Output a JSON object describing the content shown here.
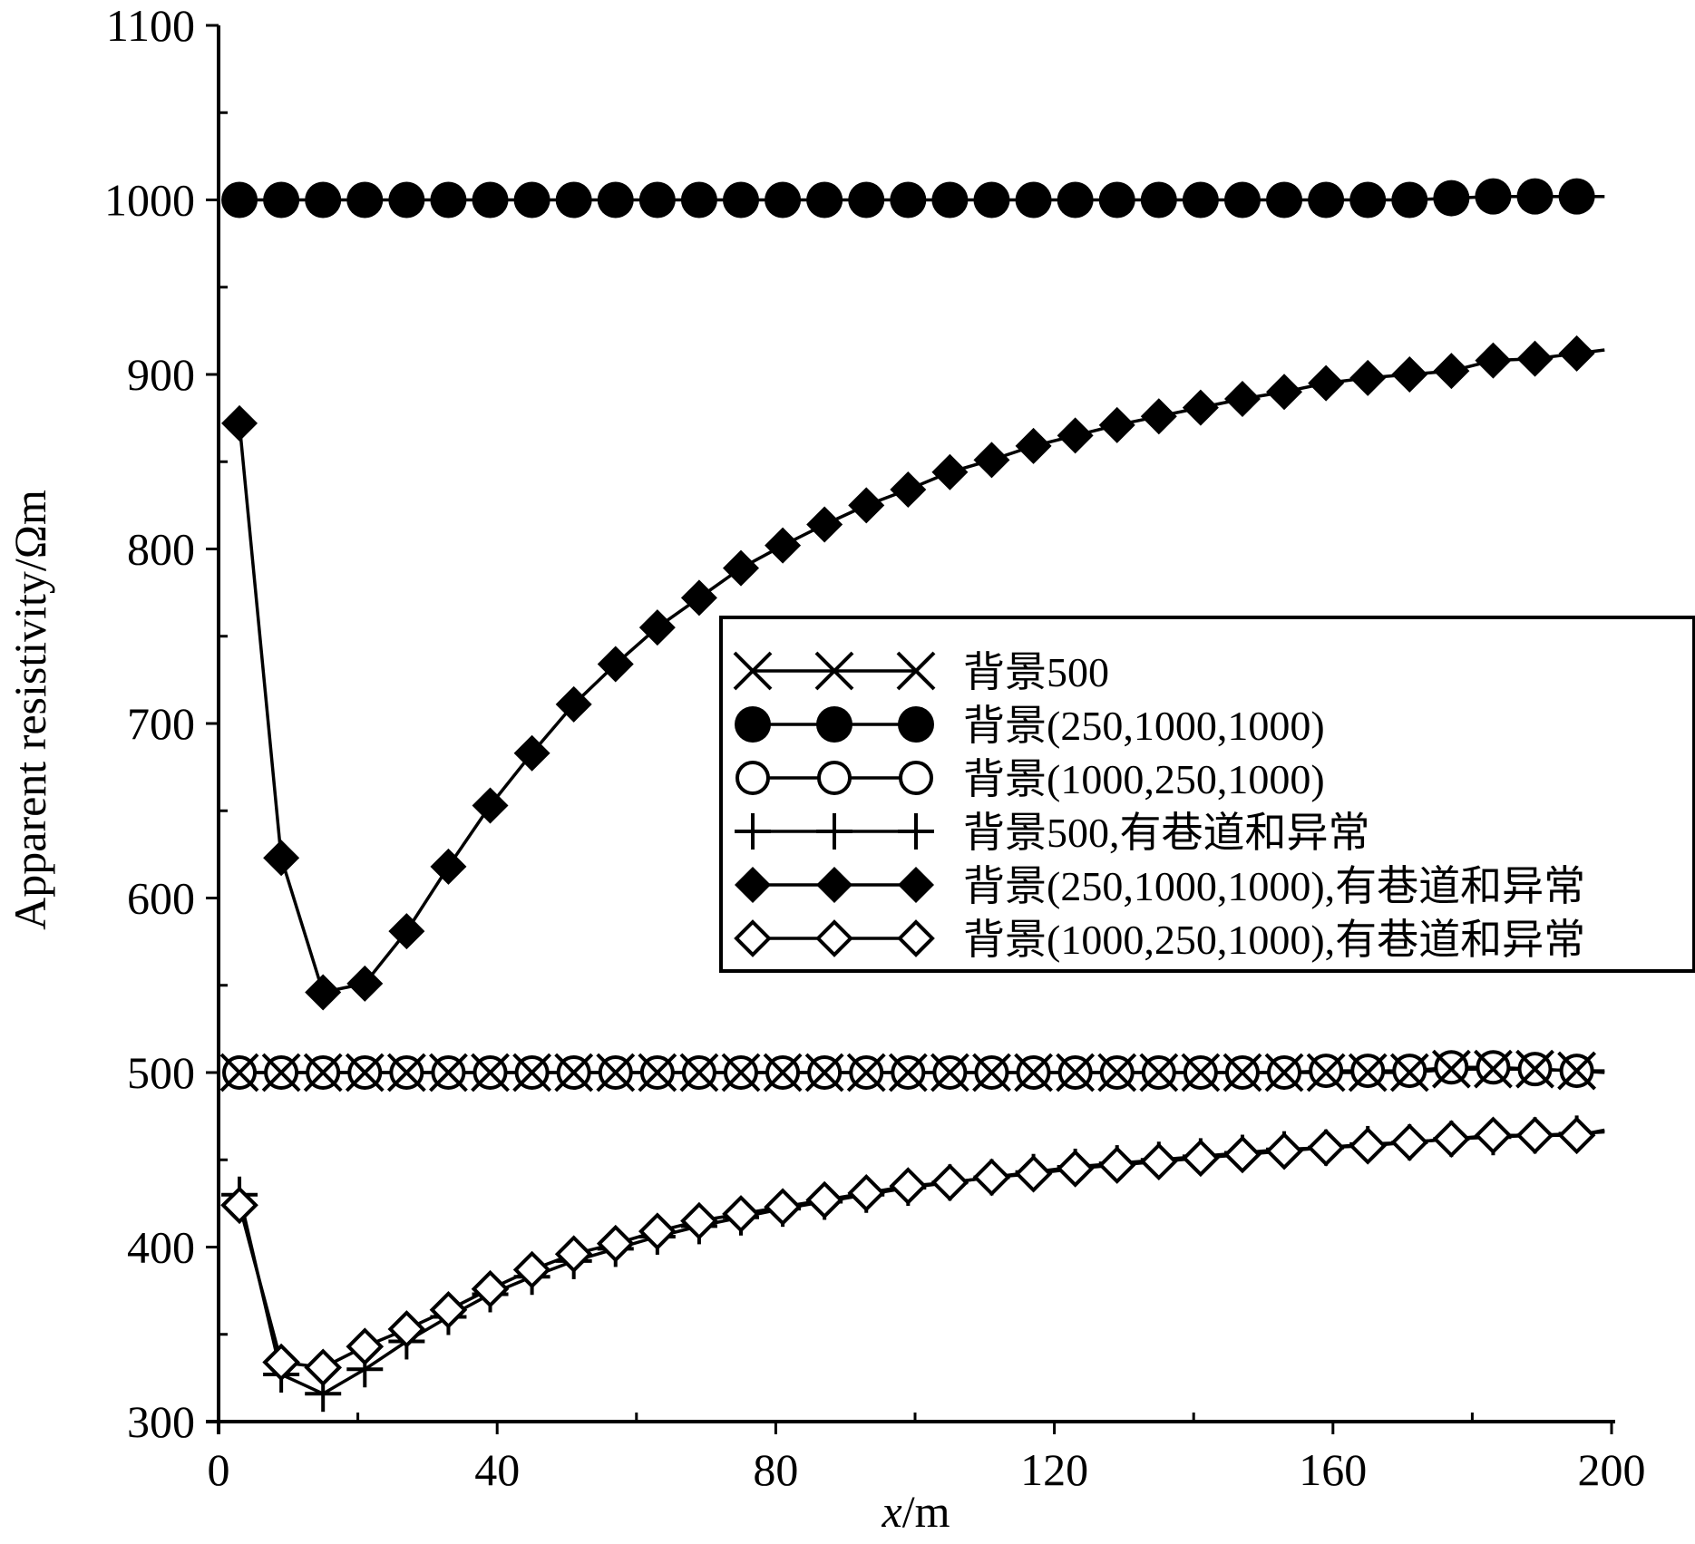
{
  "chart_data": {
    "type": "line",
    "title": "",
    "xlabel_italic": "x",
    "xlabel_rest": "/m",
    "ylabel": "Apparent resistivity/Ωm",
    "xlim": [
      0,
      200
    ],
    "ylim": [
      300,
      1100
    ],
    "x_ticks": [
      0,
      40,
      80,
      120,
      160,
      200
    ],
    "y_ticks": [
      300,
      400,
      500,
      600,
      700,
      800,
      900,
      1000,
      1100
    ],
    "x_tick_labels": [
      "0",
      "40",
      "80",
      "120",
      "160",
      "200"
    ],
    "y_tick_labels": [
      "300",
      "400",
      "500",
      "600",
      "700",
      "800",
      "900",
      "1000",
      "1100"
    ],
    "x": [
      3,
      9,
      15,
      21,
      27,
      33,
      39,
      45,
      51,
      57,
      63,
      69,
      75,
      81,
      87,
      93,
      99,
      105,
      111,
      117,
      123,
      129,
      135,
      141,
      147,
      153,
      159,
      165,
      171,
      177,
      183,
      189,
      195
    ],
    "line_end_x": 199,
    "legend_position": "right-middle",
    "series": [
      {
        "name": "背景500",
        "marker": "x",
        "values": [
          500,
          500,
          500,
          500,
          500,
          500,
          500,
          500,
          500,
          500,
          500,
          500,
          500,
          500,
          500,
          500,
          500,
          500,
          500,
          500,
          500,
          500,
          500,
          500,
          500,
          500,
          500,
          500,
          500,
          502,
          502,
          502,
          501
        ],
        "end_value": 500
      },
      {
        "name": "背景(250,1000,1000)",
        "marker": "filled-circle",
        "values": [
          1000,
          1000,
          1000,
          1000,
          1000,
          1000,
          1000,
          1000,
          1000,
          1000,
          1000,
          1000,
          1000,
          1000,
          1000,
          1000,
          1000,
          1000,
          1000,
          1000,
          1000,
          1000,
          1000,
          1000,
          1000,
          1000,
          1000,
          1000,
          1000,
          1001,
          1002,
          1002,
          1002
        ],
        "end_value": 1002
      },
      {
        "name": "背景(1000,250,1000)",
        "marker": "open-circle",
        "values": [
          500,
          500,
          500,
          500,
          500,
          500,
          500,
          500,
          500,
          500,
          500,
          500,
          500,
          500,
          500,
          500,
          500,
          500,
          500,
          500,
          500,
          500,
          500,
          500,
          500,
          500,
          501,
          501,
          501,
          503,
          503,
          502,
          501
        ],
        "end_value": 501
      },
      {
        "name": "背景500,有巷道和异常",
        "marker": "plus",
        "values": [
          430,
          327,
          316,
          330,
          346,
          360,
          373,
          383,
          392,
          399,
          406,
          412,
          417,
          422,
          426,
          430,
          434,
          437,
          440,
          443,
          446,
          448,
          450,
          452,
          454,
          456,
          457,
          459,
          460,
          462,
          463,
          464,
          465
        ],
        "end_value": 466
      },
      {
        "name": "背景(250,1000,1000),有巷道和异常",
        "marker": "filled-diamond",
        "values": [
          872,
          623,
          546,
          551,
          581,
          618,
          653,
          683,
          711,
          734,
          755,
          772,
          789,
          802,
          814,
          825,
          834,
          844,
          851,
          859,
          865,
          871,
          876,
          881,
          886,
          890,
          895,
          898,
          900,
          902,
          908,
          909,
          912
        ],
        "end_value": 914
      },
      {
        "name": "背景(1000,250,1000),有巷道和异常",
        "marker": "open-diamond",
        "values": [
          424,
          334,
          331,
          343,
          353,
          364,
          376,
          387,
          396,
          402,
          409,
          415,
          419,
          423,
          427,
          431,
          435,
          437,
          440,
          442,
          445,
          447,
          449,
          451,
          453,
          455,
          457,
          458,
          460,
          462,
          464,
          464,
          464
        ],
        "end_value": 467
      }
    ]
  }
}
